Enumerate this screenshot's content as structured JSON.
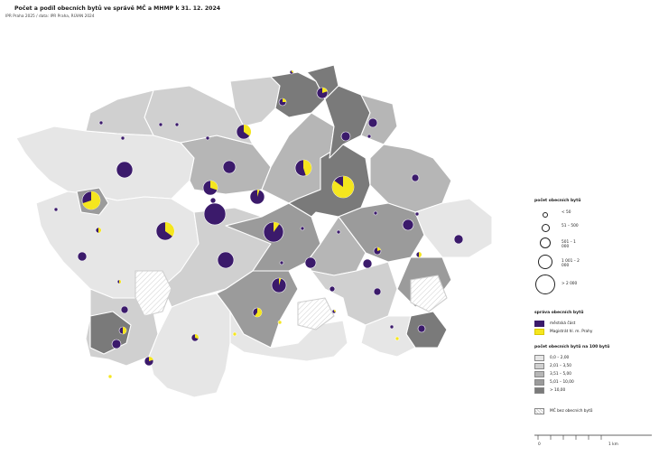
{
  "title": "Počet a podíl obecních bytů ve správě MČ a MHMP k 31. 12. 2024",
  "subtitle": "IPR Praha 2025 / data: IPR Praha, RÚIAN 2024",
  "colors": {
    "mc": "#3b1a6b",
    "mhmp": "#f5e61e",
    "class1": "#e6e6e6",
    "class2": "#d0d0d0",
    "class3": "#b6b6b6",
    "class4": "#9b9b9b",
    "class5": "#7a7a7a"
  },
  "legend": {
    "size_title": "počet obecních bytů",
    "size_classes": [
      "< 50",
      "51 – 500",
      "501 – 1 000",
      "1 001 – 2 000",
      "> 2 000"
    ],
    "management_title": "správa obecních bytů",
    "management_items": [
      "městská část",
      "Magistrát hl. m. Prahy"
    ],
    "density_title": "počet obecních bytů na 100 bytů",
    "density_classes": [
      "0,0 – 2,00",
      "2,01 – 3,50",
      "3,51 – 5,00",
      "5,01 – 10,00",
      "> 10,00"
    ],
    "none_label": "MČ bez obecních bytů"
  },
  "scale": {
    "labels": [
      "0",
      "1 km"
    ]
  }
}
